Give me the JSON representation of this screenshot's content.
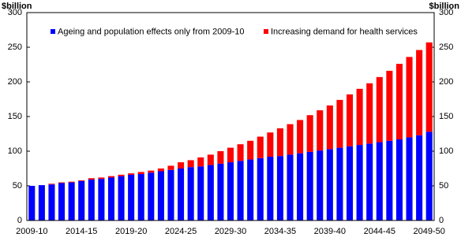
{
  "chart_data": {
    "type": "stacked-bar",
    "y_label": "$billion",
    "y2_label": "$billion",
    "categories": [
      "2009-10",
      null,
      null,
      null,
      null,
      "2014-15",
      null,
      null,
      null,
      null,
      "2019-20",
      null,
      null,
      null,
      null,
      "2024-25",
      null,
      null,
      null,
      null,
      "2029-30",
      null,
      null,
      null,
      null,
      "2034-35",
      null,
      null,
      null,
      null,
      "2039-40",
      null,
      null,
      null,
      null,
      "2044-45",
      null,
      null,
      null,
      null,
      "2049-50"
    ],
    "series": [
      {
        "name": "Ageing and population effects only from 2009-10",
        "color": "#0000ff",
        "values": [
          50,
          51,
          52,
          54,
          55,
          57,
          59,
          60,
          62,
          64,
          66,
          67,
          69,
          71,
          73,
          75,
          77,
          78,
          80,
          82,
          84,
          86,
          88,
          90,
          92,
          93,
          95,
          97,
          99,
          101,
          103,
          105,
          107,
          109,
          111,
          113,
          115,
          117,
          120,
          123,
          128
        ]
      },
      {
        "name": "Increasing demand for health services",
        "color": "#ff0000",
        "values": [
          0,
          0,
          1,
          1,
          1,
          1,
          2,
          2,
          2,
          2,
          2,
          3,
          3,
          4,
          6,
          9,
          10,
          13,
          15,
          18,
          21,
          24,
          27,
          31,
          35,
          40,
          44,
          48,
          53,
          58,
          63,
          69,
          75,
          81,
          87,
          94,
          101,
          109,
          116,
          123,
          129
        ]
      }
    ],
    "ylim": [
      0,
      300
    ],
    "yticks": [
      0,
      50,
      100,
      150,
      200,
      250,
      300
    ],
    "y2lim": [
      0,
      300
    ],
    "y2ticks": [
      0,
      50,
      100,
      150,
      200,
      250,
      300
    ],
    "grid": false
  }
}
